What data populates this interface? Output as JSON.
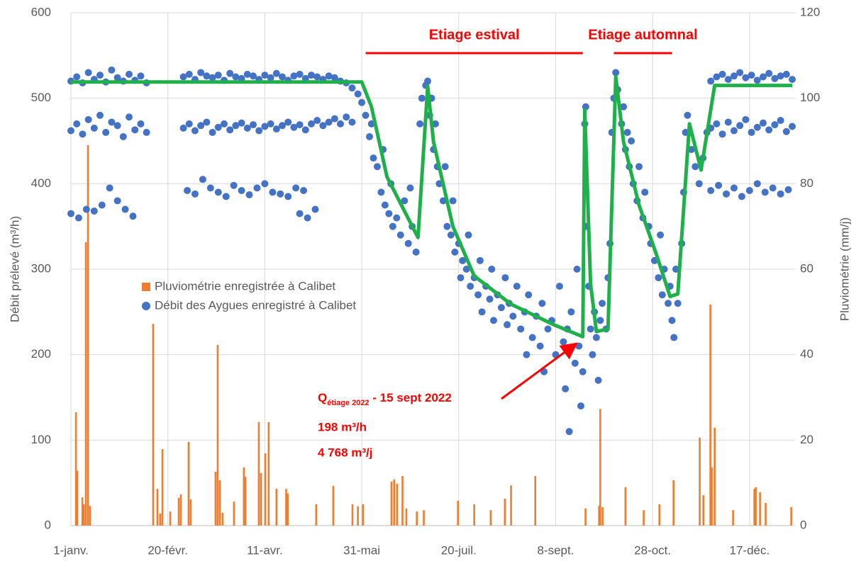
{
  "chart_data": {
    "type": "combo",
    "xlim": [
      0,
      372
    ],
    "xticks": [
      {
        "value": 0,
        "label": "1-janv."
      },
      {
        "value": 50,
        "label": "20-févr."
      },
      {
        "value": 100,
        "label": "11-avr."
      },
      {
        "value": 150,
        "label": "31-mai"
      },
      {
        "value": 200,
        "label": "20-juil."
      },
      {
        "value": 250,
        "label": "8-sept."
      },
      {
        "value": 300,
        "label": "28-oct."
      },
      {
        "value": 350,
        "label": "17-déc."
      }
    ],
    "ylim": [
      0,
      600
    ],
    "yticks": [
      0,
      100,
      200,
      300,
      400,
      500,
      600
    ],
    "y2lim": [
      0,
      120
    ],
    "y2ticks": [
      0,
      20,
      40,
      60,
      80,
      100,
      120
    ],
    "ylabel": "Débit prélevé (m³/h)",
    "y2label": "Pluviométrie (mm/j)",
    "grid": true,
    "legend": "center-left",
    "series": [
      {
        "type": "bar",
        "name": "Pluviométrie enregistrée à Calibet",
        "color": "#ed7d31",
        "axis": "y2",
        "x": [
          2.6,
          3.3,
          5.9,
          6.6,
          7.7,
          8.8,
          9.9,
          42.4,
          44.6,
          46,
          47.2,
          51.2,
          55.6,
          56.7,
          60.7,
          61.8,
          74.6,
          75.7,
          76.8,
          78.2,
          84.1,
          89.2,
          90,
          96.9,
          98,
          100.2,
          102,
          106,
          111,
          111.8,
          126.5,
          135.3,
          145.2,
          148,
          150.6,
          165.3,
          166.7,
          168.2,
          171,
          173,
          178.4,
          182,
          199.6,
          208,
          216.5,
          223.8,
          227,
          239.5,
          265.4,
          272.4,
          273,
          274.2,
          286,
          295.4,
          303.5,
          310.8,
          324.3,
          326.2,
          329.8,
          330.5,
          332,
          341.5,
          352.5,
          353.2,
          355.4,
          358.3,
          371.5
        ],
        "values": [
          26.5,
          12.8,
          6.6,
          5,
          66.3,
          89,
          4.6,
          47.2,
          8.6,
          2.8,
          17.9,
          3.3,
          6.5,
          7.3,
          19.6,
          6.1,
          12.6,
          42.3,
          10.6,
          3,
          5.6,
          13.6,
          11.4,
          24.2,
          12.3,
          16.9,
          24.2,
          8.6,
          8.6,
          7.5,
          5,
          9.3,
          5,
          4.5,
          5,
          10.3,
          10.8,
          9.8,
          11.6,
          4,
          3.3,
          3.6,
          5.8,
          5,
          3.6,
          6.3,
          9.4,
          11.6,
          4,
          4.6,
          27.3,
          4.3,
          9,
          3.6,
          5,
          10.6,
          20.6,
          7.1,
          51.7,
          13.6,
          22.9,
          3.6,
          8.6,
          9,
          7.8,
          5.3,
          4.3
        ]
      },
      {
        "type": "scatter",
        "name": "Débit des Aygues enregistré à Calibet",
        "color": "#4472c4",
        "x": [
          0,
          3,
          6,
          9,
          12,
          15,
          18,
          21,
          24,
          27,
          30,
          33,
          36,
          39,
          0,
          3,
          6,
          9,
          12,
          15,
          18,
          21,
          24,
          27,
          30,
          33,
          36,
          39,
          0,
          4,
          8,
          12,
          16,
          20,
          24,
          28,
          32,
          58,
          61,
          64,
          67,
          70,
          73,
          76,
          79,
          82,
          85,
          88,
          91,
          94,
          97,
          100,
          103,
          106,
          109,
          112,
          115,
          118,
          121,
          124,
          127,
          130,
          133,
          136,
          139,
          142,
          145,
          148,
          58,
          61,
          64,
          67,
          70,
          73,
          76,
          79,
          82,
          85,
          88,
          91,
          94,
          97,
          100,
          103,
          106,
          109,
          112,
          115,
          118,
          121,
          124,
          127,
          130,
          133,
          136,
          139,
          142,
          145,
          60,
          64,
          68,
          72,
          76,
          80,
          84,
          88,
          92,
          96,
          100,
          104,
          108,
          112,
          116,
          120,
          118,
          122,
          126,
          150,
          152,
          154,
          155,
          156,
          158,
          160,
          161,
          162,
          164,
          165,
          166,
          168,
          170,
          172,
          174,
          175,
          176,
          178,
          180,
          181,
          183,
          184,
          185,
          186,
          187,
          188,
          189,
          190,
          192,
          193,
          194,
          196,
          197,
          198,
          200,
          201,
          202,
          204,
          205,
          206,
          208,
          210,
          211,
          212,
          214,
          216,
          217,
          218,
          220,
          222,
          224,
          225,
          226,
          228,
          230,
          232,
          234,
          235,
          236,
          238,
          240,
          242,
          243,
          244,
          246,
          248,
          250,
          252,
          254,
          255,
          256,
          257,
          258,
          260,
          261,
          262,
          263,
          264,
          265,
          265.5,
          266,
          267,
          268,
          269,
          270,
          271,
          272,
          273,
          274,
          276,
          277,
          278,
          279,
          280,
          281,
          282,
          284,
          285,
          286,
          287,
          288,
          289,
          290,
          292,
          293,
          295,
          296,
          298,
          299,
          301,
          303,
          304,
          305,
          306,
          308,
          309,
          310,
          311,
          312,
          313,
          315,
          316,
          317,
          318,
          320,
          322,
          324,
          326,
          328,
          330,
          333,
          336,
          339,
          342,
          345,
          348,
          351,
          354,
          357,
          360,
          363,
          366,
          369,
          372,
          330,
          333,
          336,
          339,
          342,
          345,
          348,
          351,
          354,
          357,
          360,
          363,
          366,
          369,
          372,
          330,
          334,
          338,
          342,
          346,
          350,
          354,
          358,
          362,
          366,
          370
        ],
        "values": [
          520,
          525,
          518,
          530,
          522,
          527,
          519,
          533,
          524,
          520,
          528,
          521,
          526,
          518,
          462,
          470,
          458,
          475,
          465,
          480,
          460,
          472,
          468,
          455,
          478,
          463,
          470,
          460,
          365,
          360,
          370,
          368,
          375,
          395,
          380,
          370,
          362,
          525,
          528,
          522,
          530,
          526,
          524,
          527,
          521,
          529,
          525,
          523,
          528,
          526,
          522,
          527,
          524,
          529,
          525,
          521,
          526,
          528,
          523,
          527,
          525,
          522,
          526,
          524,
          520,
          518,
          512,
          505,
          465,
          470,
          462,
          468,
          472,
          460,
          466,
          470,
          463,
          468,
          471,
          465,
          469,
          462,
          467,
          470,
          464,
          468,
          472,
          466,
          469,
          463,
          470,
          474,
          468,
          472,
          476,
          470,
          478,
          472,
          392,
          388,
          405,
          395,
          390,
          385,
          398,
          392,
          387,
          395,
          400,
          390,
          388,
          385,
          395,
          392,
          365,
          360,
          370,
          495,
          480,
          455,
          470,
          430,
          420,
          390,
          440,
          375,
          365,
          400,
          350,
          360,
          340,
          380,
          330,
          395,
          350,
          320,
          470,
          500,
          515,
          520,
          480,
          500,
          440,
          470,
          420,
          400,
          380,
          420,
          350,
          340,
          380,
          320,
          330,
          290,
          310,
          300,
          340,
          280,
          290,
          270,
          310,
          250,
          280,
          265,
          300,
          240,
          270,
          255,
          290,
          235,
          260,
          245,
          280,
          230,
          250,
          200,
          270,
          220,
          245,
          210,
          260,
          180,
          230,
          240,
          200,
          280,
          215,
          160,
          230,
          110,
          250,
          190,
          300,
          210,
          140,
          180,
          470,
          490,
          350,
          280,
          230,
          200,
          250,
          220,
          170,
          240,
          260,
          230,
          290,
          330,
          460,
          500,
          530,
          510,
          470,
          490,
          440,
          460,
          420,
          450,
          400,
          380,
          420,
          360,
          390,
          350,
          330,
          310,
          290,
          340,
          270,
          300,
          260,
          280,
          240,
          220,
          300,
          260,
          330,
          390,
          460,
          480,
          440,
          420,
          400,
          430,
          460,
          520,
          525,
          528,
          522,
          526,
          530,
          524,
          527,
          521,
          525,
          529,
          523,
          526,
          528,
          522,
          465,
          470,
          458,
          472,
          462,
          468,
          475,
          460,
          466,
          471,
          463,
          469,
          474,
          461,
          467,
          392,
          398,
          388,
          395,
          385,
          392,
          400,
          390,
          395,
          388,
          393
        ]
      },
      {
        "type": "line",
        "color": "#1fb04b",
        "x": [
          0,
          150,
          155,
          163,
          179,
          184,
          187,
          197,
          208,
          227,
          249,
          264,
          265,
          268,
          271,
          277,
          281,
          285,
          293,
          302,
          309,
          313,
          319,
          325,
          332,
          372
        ],
        "values": [
          519,
          519,
          490,
          408,
          337,
          514,
          449,
          350,
          292,
          259,
          235,
          221,
          486,
          283,
          227,
          230,
          525,
          449,
          375,
          317,
          268,
          271,
          470,
          416,
          515,
          515
        ]
      }
    ],
    "annotations": [
      {
        "text": "Etiage estival",
        "span": [
          152,
          264
        ]
      },
      {
        "text": "Etiage automnal",
        "span": [
          280,
          310
        ]
      }
    ],
    "note": {
      "q": "Q",
      "sub": "étiage 2022",
      "date": " - 15 sept 2022",
      "hourly": "198 m³/h",
      "daily": "4 768 m³/j"
    }
  }
}
